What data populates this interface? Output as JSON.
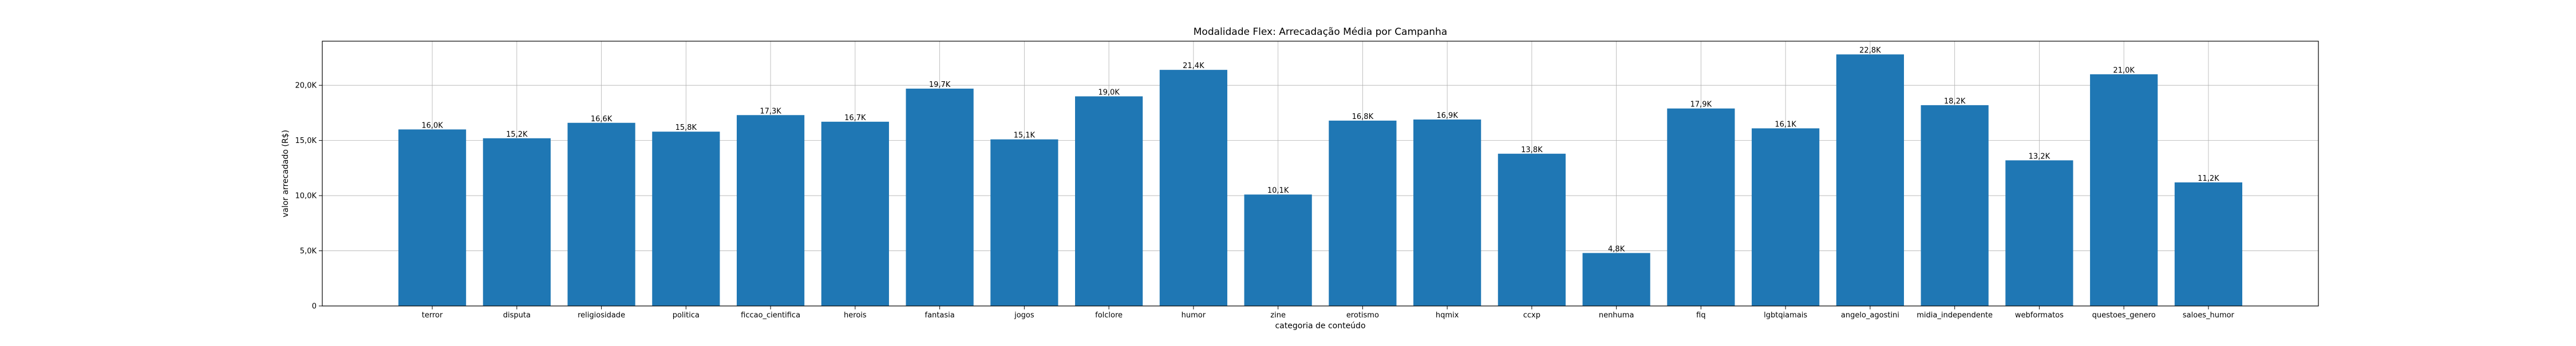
{
  "chart_data": {
    "type": "bar",
    "title": "Modalidade Flex: Arrecadação Média por Campanha",
    "xlabel": "categoria de conteúdo",
    "ylabel": "valor arrecadado (R$)",
    "ylim": [
      0,
      24000
    ],
    "yticks": [
      0,
      5000,
      10000,
      15000,
      20000
    ],
    "ytick_labels": [
      "0",
      "5,0K",
      "10,0K",
      "15,0K",
      "20,0K"
    ],
    "grid": true,
    "bar_color": "#1f77b4",
    "categories": [
      "terror",
      "disputa",
      "religiosidade",
      "politica",
      "ficcao_cientifica",
      "herois",
      "fantasia",
      "jogos",
      "folclore",
      "humor",
      "zine",
      "erotismo",
      "hqmix",
      "ccxp",
      "nenhuma",
      "fiq",
      "lgbtqiamais",
      "angelo_agostini",
      "midia_independente",
      "webformatos",
      "questoes_genero",
      "saloes_humor"
    ],
    "values": [
      16000,
      15200,
      16600,
      15800,
      17300,
      16700,
      19700,
      15100,
      19000,
      21400,
      10100,
      16800,
      16900,
      13800,
      4800,
      17900,
      16100,
      22800,
      18200,
      13200,
      21000,
      11200
    ],
    "value_labels": [
      "16,0K",
      "15,2K",
      "16,6K",
      "15,8K",
      "17,3K",
      "16,7K",
      "19,7K",
      "15,1K",
      "19,0K",
      "21,4K",
      "10,1K",
      "16,8K",
      "16,9K",
      "13,8K",
      "4,8K",
      "17,9K",
      "16,1K",
      "22,8K",
      "18,2K",
      "13,2K",
      "21,0K",
      "11,2K"
    ]
  }
}
